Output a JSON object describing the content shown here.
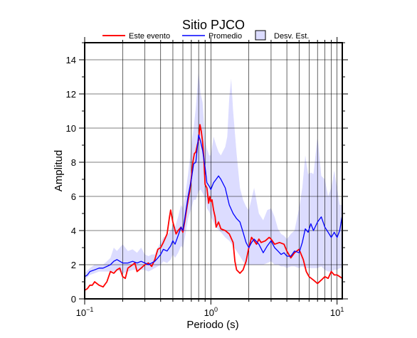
{
  "chart_data": {
    "type": "line",
    "title": "Sitio PJCO",
    "xlabel": "Periodo (s)",
    "ylabel": "Amplitud",
    "x_scale": "log",
    "xlim": [
      0.1,
      11
    ],
    "ylim": [
      0,
      15
    ],
    "x_ticks": [
      {
        "value": 0.1,
        "base": "10",
        "exp": "−1"
      },
      {
        "value": 1,
        "base": "10",
        "exp": "0"
      },
      {
        "value": 10,
        "base": "10",
        "exp": "1"
      }
    ],
    "y_ticks": [
      0,
      2,
      4,
      6,
      8,
      10,
      12,
      14
    ],
    "grid": true,
    "legend_position": "top",
    "series": [
      {
        "name": "Este evento",
        "color": "#ff0000",
        "points": [
          [
            0.1,
            0.5
          ],
          [
            0.105,
            0.6
          ],
          [
            0.11,
            0.8
          ],
          [
            0.115,
            0.8
          ],
          [
            0.12,
            1.0
          ],
          [
            0.13,
            0.8
          ],
          [
            0.14,
            0.7
          ],
          [
            0.15,
            1.0
          ],
          [
            0.16,
            1.6
          ],
          [
            0.17,
            1.5
          ],
          [
            0.18,
            1.7
          ],
          [
            0.19,
            1.8
          ],
          [
            0.2,
            1.3
          ],
          [
            0.21,
            1.2
          ],
          [
            0.22,
            1.8
          ],
          [
            0.23,
            1.9
          ],
          [
            0.25,
            2.1
          ],
          [
            0.26,
            1.6
          ],
          [
            0.28,
            1.8
          ],
          [
            0.3,
            2.0
          ],
          [
            0.32,
            2.1
          ],
          [
            0.34,
            1.9
          ],
          [
            0.36,
            2.3
          ],
          [
            0.38,
            2.9
          ],
          [
            0.4,
            3.0
          ],
          [
            0.42,
            3.3
          ],
          [
            0.45,
            3.8
          ],
          [
            0.47,
            4.8
          ],
          [
            0.48,
            5.2
          ],
          [
            0.5,
            4.5
          ],
          [
            0.53,
            3.8
          ],
          [
            0.55,
            4.0
          ],
          [
            0.58,
            4.2
          ],
          [
            0.6,
            3.9
          ],
          [
            0.62,
            4.5
          ],
          [
            0.65,
            5.5
          ],
          [
            0.68,
            6.3
          ],
          [
            0.7,
            7.1
          ],
          [
            0.72,
            8.0
          ],
          [
            0.74,
            8.5
          ],
          [
            0.76,
            8.6
          ],
          [
            0.78,
            9.0
          ],
          [
            0.8,
            9.3
          ],
          [
            0.82,
            10.2
          ],
          [
            0.84,
            9.8
          ],
          [
            0.86,
            9.2
          ],
          [
            0.88,
            8.2
          ],
          [
            0.9,
            6.7
          ],
          [
            0.93,
            6.5
          ],
          [
            0.96,
            5.6
          ],
          [
            0.98,
            6.0
          ],
          [
            1.0,
            5.7
          ],
          [
            1.02,
            5.8
          ],
          [
            1.05,
            5.2
          ],
          [
            1.08,
            4.8
          ],
          [
            1.1,
            4.2
          ],
          [
            1.15,
            4.5
          ],
          [
            1.2,
            4.1
          ],
          [
            1.3,
            4.0
          ],
          [
            1.4,
            3.8
          ],
          [
            1.5,
            3.3
          ],
          [
            1.55,
            2.2
          ],
          [
            1.6,
            1.7
          ],
          [
            1.7,
            1.5
          ],
          [
            1.8,
            1.7
          ],
          [
            1.9,
            2.2
          ],
          [
            2.0,
            3.0
          ],
          [
            2.1,
            3.6
          ],
          [
            2.2,
            3.4
          ],
          [
            2.3,
            3.2
          ],
          [
            2.4,
            3.5
          ],
          [
            2.5,
            3.3
          ],
          [
            2.7,
            3.4
          ],
          [
            2.9,
            3.6
          ],
          [
            3.0,
            3.5
          ],
          [
            3.2,
            3.2
          ],
          [
            3.5,
            3.3
          ],
          [
            3.8,
            3.2
          ],
          [
            4.0,
            2.8
          ],
          [
            4.3,
            2.4
          ],
          [
            4.6,
            2.7
          ],
          [
            5.0,
            2.9
          ],
          [
            5.4,
            2.3
          ],
          [
            5.7,
            1.6
          ],
          [
            6.0,
            1.3
          ],
          [
            6.5,
            1.1
          ],
          [
            7.0,
            0.9
          ],
          [
            7.5,
            1.1
          ],
          [
            8.0,
            1.3
          ],
          [
            8.5,
            1.2
          ],
          [
            9.0,
            1.6
          ],
          [
            9.5,
            1.4
          ],
          [
            10.0,
            1.4
          ],
          [
            10.5,
            1.3
          ],
          [
            11.0,
            1.2
          ]
        ]
      },
      {
        "name": "Promedio",
        "color": "#0000ff",
        "points": [
          [
            0.1,
            1.3
          ],
          [
            0.105,
            1.4
          ],
          [
            0.11,
            1.6
          ],
          [
            0.12,
            1.7
          ],
          [
            0.13,
            1.8
          ],
          [
            0.14,
            1.8
          ],
          [
            0.15,
            1.9
          ],
          [
            0.16,
            2.0
          ],
          [
            0.17,
            2.2
          ],
          [
            0.18,
            2.3
          ],
          [
            0.19,
            2.2
          ],
          [
            0.2,
            2.1
          ],
          [
            0.22,
            2.1
          ],
          [
            0.24,
            2.2
          ],
          [
            0.26,
            2.1
          ],
          [
            0.28,
            2.2
          ],
          [
            0.3,
            2.1
          ],
          [
            0.32,
            2.0
          ],
          [
            0.34,
            2.1
          ],
          [
            0.36,
            2.2
          ],
          [
            0.38,
            2.4
          ],
          [
            0.4,
            2.6
          ],
          [
            0.42,
            2.9
          ],
          [
            0.45,
            2.8
          ],
          [
            0.48,
            3.1
          ],
          [
            0.5,
            3.4
          ],
          [
            0.52,
            3.2
          ],
          [
            0.55,
            3.7
          ],
          [
            0.58,
            4.2
          ],
          [
            0.6,
            4.0
          ],
          [
            0.63,
            5.0
          ],
          [
            0.66,
            6.0
          ],
          [
            0.7,
            7.0
          ],
          [
            0.73,
            7.9
          ],
          [
            0.76,
            8.0
          ],
          [
            0.8,
            9.6
          ],
          [
            0.83,
            9.2
          ],
          [
            0.86,
            8.7
          ],
          [
            0.9,
            7.7
          ],
          [
            0.93,
            6.8
          ],
          [
            0.97,
            6.6
          ],
          [
            1.0,
            6.4
          ],
          [
            1.05,
            6.8
          ],
          [
            1.1,
            7.0
          ],
          [
            1.15,
            7.2
          ],
          [
            1.2,
            7.0
          ],
          [
            1.3,
            6.5
          ],
          [
            1.4,
            5.5
          ],
          [
            1.5,
            5.0
          ],
          [
            1.6,
            4.7
          ],
          [
            1.7,
            4.5
          ],
          [
            1.8,
            3.9
          ],
          [
            1.9,
            3.3
          ],
          [
            2.0,
            3.0
          ],
          [
            2.1,
            3.3
          ],
          [
            2.2,
            3.5
          ],
          [
            2.4,
            3.2
          ],
          [
            2.6,
            2.7
          ],
          [
            2.8,
            3.1
          ],
          [
            3.0,
            3.4
          ],
          [
            3.2,
            3.0
          ],
          [
            3.4,
            2.8
          ],
          [
            3.6,
            2.6
          ],
          [
            3.8,
            2.7
          ],
          [
            4.0,
            2.5
          ],
          [
            4.3,
            2.5
          ],
          [
            4.6,
            2.8
          ],
          [
            5.0,
            2.7
          ],
          [
            5.3,
            3.3
          ],
          [
            5.6,
            4.1
          ],
          [
            5.9,
            3.9
          ],
          [
            6.2,
            4.4
          ],
          [
            6.5,
            4.0
          ],
          [
            7.0,
            4.5
          ],
          [
            7.5,
            4.8
          ],
          [
            8.0,
            4.2
          ],
          [
            8.5,
            3.9
          ],
          [
            9.0,
            3.6
          ],
          [
            9.5,
            3.9
          ],
          [
            10.0,
            3.6
          ],
          [
            10.5,
            4.0
          ],
          [
            11.0,
            4.9
          ]
        ]
      }
    ],
    "band": {
      "name": "Desv. Est.",
      "color": "#dcdcff",
      "upper": [
        [
          0.1,
          1.5
        ],
        [
          0.11,
          1.8
        ],
        [
          0.12,
          2.0
        ],
        [
          0.13,
          2.0
        ],
        [
          0.14,
          2.0
        ],
        [
          0.15,
          2.2
        ],
        [
          0.16,
          2.4
        ],
        [
          0.17,
          3.0
        ],
        [
          0.18,
          2.8
        ],
        [
          0.19,
          3.0
        ],
        [
          0.2,
          3.2
        ],
        [
          0.22,
          2.8
        ],
        [
          0.24,
          2.9
        ],
        [
          0.26,
          2.7
        ],
        [
          0.28,
          3.0
        ],
        [
          0.3,
          2.6
        ],
        [
          0.32,
          2.5
        ],
        [
          0.34,
          2.6
        ],
        [
          0.36,
          2.6
        ],
        [
          0.38,
          3.0
        ],
        [
          0.4,
          3.3
        ],
        [
          0.42,
          3.6
        ],
        [
          0.45,
          3.7
        ],
        [
          0.48,
          4.0
        ],
        [
          0.5,
          4.3
        ],
        [
          0.52,
          4.2
        ],
        [
          0.55,
          4.8
        ],
        [
          0.58,
          5.5
        ],
        [
          0.6,
          5.3
        ],
        [
          0.63,
          6.2
        ],
        [
          0.66,
          7.3
        ],
        [
          0.7,
          9.0
        ],
        [
          0.73,
          10.0
        ],
        [
          0.76,
          11.2
        ],
        [
          0.8,
          13.3
        ],
        [
          0.83,
          12.0
        ],
        [
          0.86,
          11.5
        ],
        [
          0.9,
          9.3
        ],
        [
          0.93,
          8.8
        ],
        [
          0.97,
          8.4
        ],
        [
          1.0,
          8.4
        ],
        [
          1.05,
          9.5
        ],
        [
          1.1,
          9.0
        ],
        [
          1.15,
          8.6
        ],
        [
          1.2,
          8.4
        ],
        [
          1.3,
          8.9
        ],
        [
          1.35,
          9.5
        ],
        [
          1.4,
          11.8
        ],
        [
          1.45,
          12.9
        ],
        [
          1.5,
          11.0
        ],
        [
          1.6,
          8.5
        ],
        [
          1.7,
          6.5
        ],
        [
          1.8,
          5.8
        ],
        [
          1.9,
          5.4
        ],
        [
          2.0,
          5.2
        ],
        [
          2.2,
          6.5
        ],
        [
          2.4,
          5.0
        ],
        [
          2.6,
          4.6
        ],
        [
          2.8,
          5.2
        ],
        [
          3.0,
          5.3
        ],
        [
          3.2,
          4.8
        ],
        [
          3.4,
          4.1
        ],
        [
          3.6,
          3.8
        ],
        [
          3.8,
          3.7
        ],
        [
          4.0,
          3.5
        ],
        [
          4.3,
          3.8
        ],
        [
          4.6,
          4.0
        ],
        [
          5.0,
          5.3
        ],
        [
          5.3,
          6.5
        ],
        [
          5.6,
          8.4
        ],
        [
          5.9,
          7.3
        ],
        [
          6.2,
          7.4
        ],
        [
          6.5,
          7.3
        ],
        [
          7.0,
          9.5
        ],
        [
          7.5,
          7.2
        ],
        [
          8.0,
          7.0
        ],
        [
          8.5,
          6.0
        ],
        [
          9.0,
          6.5
        ],
        [
          9.5,
          7.5
        ],
        [
          10.0,
          6.5
        ],
        [
          10.5,
          5.5
        ],
        [
          11.0,
          5.5
        ]
      ],
      "lower": [
        [
          0.1,
          1.1
        ],
        [
          0.11,
          1.4
        ],
        [
          0.12,
          1.5
        ],
        [
          0.13,
          1.6
        ],
        [
          0.14,
          1.6
        ],
        [
          0.15,
          1.6
        ],
        [
          0.16,
          1.6
        ],
        [
          0.17,
          1.6
        ],
        [
          0.18,
          1.7
        ],
        [
          0.19,
          1.6
        ],
        [
          0.2,
          1.5
        ],
        [
          0.22,
          1.6
        ],
        [
          0.24,
          1.7
        ],
        [
          0.26,
          1.7
        ],
        [
          0.28,
          1.7
        ],
        [
          0.3,
          1.7
        ],
        [
          0.32,
          1.6
        ],
        [
          0.34,
          1.7
        ],
        [
          0.36,
          1.8
        ],
        [
          0.38,
          1.9
        ],
        [
          0.4,
          2.0
        ],
        [
          0.42,
          2.2
        ],
        [
          0.45,
          2.1
        ],
        [
          0.48,
          2.3
        ],
        [
          0.5,
          2.6
        ],
        [
          0.52,
          2.4
        ],
        [
          0.55,
          2.7
        ],
        [
          0.58,
          3.1
        ],
        [
          0.6,
          3.0
        ],
        [
          0.63,
          3.8
        ],
        [
          0.66,
          4.7
        ],
        [
          0.7,
          5.3
        ],
        [
          0.73,
          5.8
        ],
        [
          0.76,
          5.8
        ],
        [
          0.8,
          6.3
        ],
        [
          0.83,
          6.4
        ],
        [
          0.86,
          6.2
        ],
        [
          0.9,
          5.9
        ],
        [
          0.93,
          5.3
        ],
        [
          0.97,
          5.1
        ],
        [
          1.0,
          4.8
        ],
        [
          1.05,
          4.5
        ],
        [
          1.1,
          4.2
        ],
        [
          1.2,
          3.9
        ],
        [
          1.3,
          3.6
        ],
        [
          1.4,
          3.4
        ],
        [
          1.5,
          3.1
        ],
        [
          1.6,
          2.8
        ],
        [
          1.7,
          2.5
        ],
        [
          1.8,
          2.2
        ],
        [
          1.9,
          2.0
        ],
        [
          2.0,
          2.0
        ],
        [
          2.2,
          2.0
        ],
        [
          2.4,
          2.0
        ],
        [
          2.6,
          2.0
        ],
        [
          2.8,
          2.1
        ],
        [
          3.0,
          2.2
        ],
        [
          3.2,
          2.0
        ],
        [
          3.4,
          2.0
        ],
        [
          3.6,
          1.9
        ],
        [
          3.8,
          1.9
        ],
        [
          4.0,
          1.8
        ],
        [
          4.3,
          1.9
        ],
        [
          4.6,
          1.9
        ],
        [
          5.0,
          1.8
        ],
        [
          5.3,
          1.9
        ],
        [
          5.6,
          1.8
        ],
        [
          5.9,
          1.8
        ],
        [
          6.2,
          1.8
        ],
        [
          6.5,
          1.8
        ],
        [
          7.0,
          1.8
        ],
        [
          7.5,
          1.9
        ],
        [
          8.0,
          1.7
        ],
        [
          8.5,
          1.6
        ],
        [
          9.0,
          1.6
        ],
        [
          9.5,
          1.7
        ],
        [
          10.0,
          1.7
        ],
        [
          10.5,
          1.8
        ],
        [
          11.0,
          1.8
        ]
      ]
    }
  }
}
